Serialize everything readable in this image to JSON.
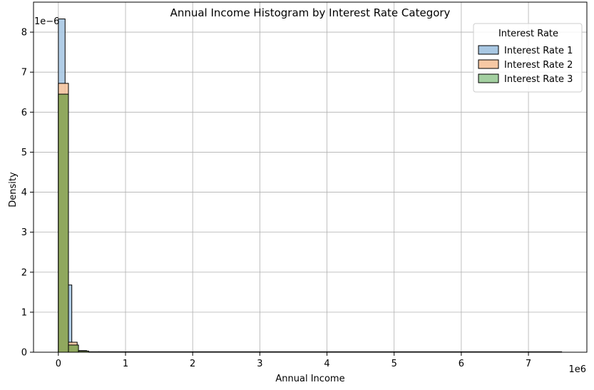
{
  "chart_data": {
    "type": "histogram",
    "title": "Annual Income Histogram by Interest Rate Category",
    "xlabel": "Annual Income",
    "ylabel": "Density",
    "x_offset_label": "1e6",
    "y_offset_label": "1e−6",
    "x_ticks": [
      "0",
      "1",
      "2",
      "3",
      "4",
      "5",
      "6",
      "7"
    ],
    "y_ticks": [
      "0",
      "1",
      "2",
      "3",
      "4",
      "5",
      "6",
      "7",
      "8"
    ],
    "xlim": [
      -0.37,
      7.87
    ],
    "ylim": [
      0,
      8.75
    ],
    "grid": true,
    "legend": {
      "title": "Interest Rate",
      "position": "top-right"
    },
    "series": [
      {
        "name": "Interest Rate 1",
        "color": "#a9c8e3",
        "bins": [
          [
            0.0,
            0.1,
            8.33
          ],
          [
            0.1,
            0.2,
            1.68
          ],
          [
            0.2,
            0.3,
            0.02
          ]
        ]
      },
      {
        "name": "Interest Rate 2",
        "color": "#f7c8a4",
        "bins": [
          [
            0.0,
            0.15,
            6.72
          ],
          [
            0.15,
            0.28,
            0.25
          ],
          [
            0.28,
            0.42,
            0.04
          ],
          [
            0.42,
            0.6,
            0.01
          ]
        ]
      },
      {
        "name": "Interest Rate 3",
        "color": "#a3cfa0",
        "overlap_color": "#8aa65a",
        "bins": [
          [
            0.0,
            0.15,
            6.45
          ],
          [
            0.15,
            0.3,
            0.18
          ],
          [
            0.3,
            0.45,
            0.03
          ],
          [
            0.45,
            0.6,
            0.01
          ]
        ]
      }
    ],
    "x_max_bin": 7.5
  }
}
